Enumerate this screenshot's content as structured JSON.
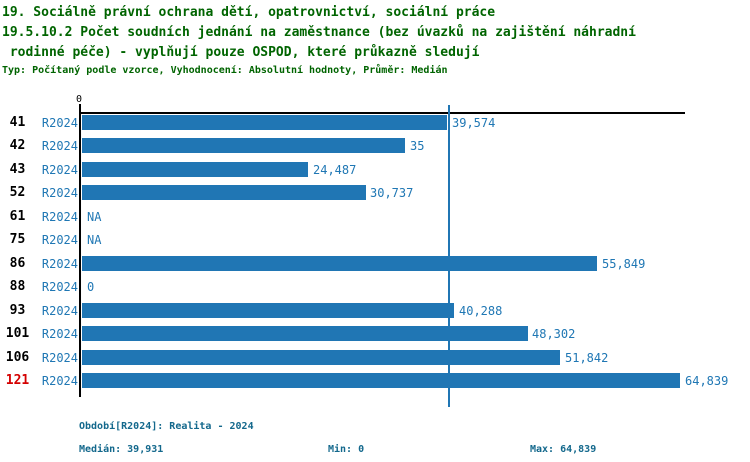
{
  "title": {
    "line1": "19. Sociálně právní ochrana dětí, opatrovnictví, sociální práce",
    "line2": "19.5.10.2 Počet soudních jednání na zaměstnance (bez úvazků na zajištění náhradní",
    "line3": " rodinné péče) - vyplňují pouze OSPOD, které průkazně sledují",
    "meta": "Typ: Počítaný podle vzorce, Vyhodnocení: Absolutní hodnoty, Průměr: Medián"
  },
  "chart_data": {
    "type": "bar",
    "orientation": "horizontal",
    "axis_zero_label": "0",
    "xlim": [
      0,
      64839
    ],
    "median_line_value": 39931,
    "series_label": "R2024",
    "categories": [
      "41",
      "42",
      "43",
      "52",
      "61",
      "75",
      "86",
      "88",
      "93",
      "101",
      "106",
      "121"
    ],
    "rows": [
      {
        "id": "41",
        "period": "R2024",
        "value": 39574,
        "label": "39,574",
        "highlight": false
      },
      {
        "id": "42",
        "period": "R2024",
        "value": 35000,
        "label": "35",
        "highlight": false
      },
      {
        "id": "43",
        "period": "R2024",
        "value": 24487,
        "label": "24,487",
        "highlight": false
      },
      {
        "id": "52",
        "period": "R2024",
        "value": 30737,
        "label": "30,737",
        "highlight": false
      },
      {
        "id": "61",
        "period": "R2024",
        "value": null,
        "label": "NA",
        "highlight": false
      },
      {
        "id": "75",
        "period": "R2024",
        "value": null,
        "label": "NA",
        "highlight": false
      },
      {
        "id": "86",
        "period": "R2024",
        "value": 55849,
        "label": "55,849",
        "highlight": false
      },
      {
        "id": "88",
        "period": "R2024",
        "value": 0,
        "label": "0",
        "highlight": false
      },
      {
        "id": "93",
        "period": "R2024",
        "value": 40288,
        "label": "40,288",
        "highlight": false
      },
      {
        "id": "101",
        "period": "R2024",
        "value": 48302,
        "label": "48,302",
        "highlight": false
      },
      {
        "id": "106",
        "period": "R2024",
        "value": 51842,
        "label": "51,842",
        "highlight": false
      },
      {
        "id": "121",
        "period": "R2024",
        "value": 64839,
        "label": "64,839",
        "highlight": true
      }
    ]
  },
  "footer": {
    "period_label": "Období[R2024]: Realita - 2024",
    "median": "Medián: 39,931",
    "min": "Min: 0",
    "max": "Max: 64,839"
  },
  "colors": {
    "title_green": "#006400",
    "bar_blue": "#2076b4",
    "text_blue": "#1f77b4",
    "footer_teal": "#13688c",
    "highlight_red": "#d40000",
    "axis_black": "#000000"
  }
}
